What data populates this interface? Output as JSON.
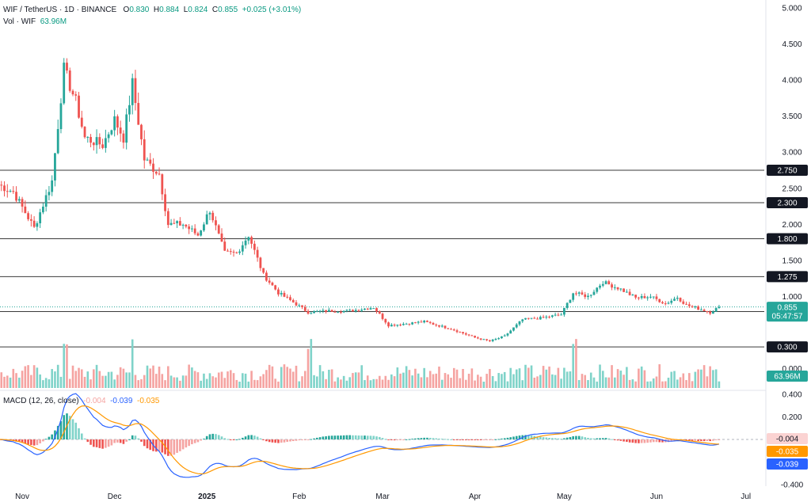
{
  "header": {
    "symbol": "WIF / TetherUS · 1D · BINANCE",
    "o_label": "O",
    "o_value": "0.830",
    "h_label": "H",
    "h_value": "0.884",
    "l_label": "L",
    "l_value": "0.824",
    "c_label": "C",
    "c_value": "0.855",
    "change": "+0.025 (+3.01%)",
    "vol_label": "Vol · WIF",
    "vol_value": "63.96M"
  },
  "macd_header": {
    "label": "MACD (12, 26, close)",
    "hist_value": "-0.004",
    "macd_value": "-0.039",
    "signal_value": "-0.035"
  },
  "colors": {
    "up": "#26a69a",
    "down": "#ef5350",
    "up_vol": "#7fd3c9",
    "down_vol": "#f5a3a1",
    "macd_line": "#2962ff",
    "signal_line": "#ff9800",
    "level_line": "#3a3a3a"
  },
  "chart_data": {
    "type": "candlestick",
    "price_axis": {
      "ticks": [
        "5.000",
        "4.500",
        "4.000",
        "3.500",
        "3.000",
        "2.500",
        "2.000",
        "1.500",
        "1.000",
        "0.000"
      ],
      "tick_values": [
        5.0,
        4.5,
        4.0,
        3.5,
        3.0,
        2.5,
        2.0,
        1.5,
        1.0,
        0.0
      ]
    },
    "time_axis": [
      "Nov",
      "Dec",
      "2025",
      "Feb",
      "Mar",
      "Apr",
      "May",
      "Jun",
      "Jul"
    ],
    "horizontal_levels": [
      {
        "value": 2.75,
        "label": "2.750"
      },
      {
        "value": 2.3,
        "label": "2.300"
      },
      {
        "value": 1.8,
        "label": "1.800"
      },
      {
        "value": 1.275,
        "label": "1.275"
      },
      {
        "value": 0.79,
        "label": "0.790"
      },
      {
        "value": 0.3,
        "label": "0.300"
      }
    ],
    "last_price": {
      "value": 0.855,
      "label": "0.855",
      "countdown": "05:47:57"
    },
    "volume_tag": "63.96M",
    "price_series_approx": [
      {
        "date": "late Oct",
        "close": 2.55
      },
      {
        "date": "Nov 5",
        "close": 1.95
      },
      {
        "date": "Nov 10",
        "close": 2.6
      },
      {
        "date": "Nov 14",
        "close": 4.15
      },
      {
        "date": "Nov 20",
        "close": 3.3
      },
      {
        "date": "Nov 28",
        "close": 3.2
      },
      {
        "date": "Dec 3",
        "close": 3.45
      },
      {
        "date": "Dec 6",
        "close": 3.95
      },
      {
        "date": "Dec 10",
        "close": 2.9
      },
      {
        "date": "Dec 20",
        "close": 2.0
      },
      {
        "date": "Jan 1",
        "close": 2.0
      },
      {
        "date": "Jan 6",
        "close": 2.2
      },
      {
        "date": "Jan 12",
        "close": 1.6
      },
      {
        "date": "Jan 18",
        "close": 1.85
      },
      {
        "date": "Jan 25",
        "close": 1.3
      },
      {
        "date": "Feb 3",
        "close": 0.95
      },
      {
        "date": "Feb 10",
        "close": 0.8
      },
      {
        "date": "Feb 28",
        "close": 0.82
      },
      {
        "date": "Mar 10",
        "close": 0.58
      },
      {
        "date": "Mar 25",
        "close": 0.63
      },
      {
        "date": "Apr 7",
        "close": 0.38
      },
      {
        "date": "Apr 25",
        "close": 0.68
      },
      {
        "date": "May 8",
        "close": 0.75
      },
      {
        "date": "May 12",
        "close": 1.05
      },
      {
        "date": "May 22",
        "close": 1.15
      },
      {
        "date": "Jun 1",
        "close": 0.98
      },
      {
        "date": "Jun 10",
        "close": 0.95
      },
      {
        "date": "Jun 20",
        "close": 0.78
      },
      {
        "date": "Jun 24",
        "close": 0.855
      }
    ],
    "macd_axis": {
      "ticks": [
        "0.400",
        "0.200",
        "0.000",
        "-0.400"
      ],
      "tick_values": [
        0.4,
        0.2,
        0.0,
        -0.4
      ]
    },
    "macd_tags": {
      "hist": "-0.004",
      "signal": "-0.035",
      "macd": "-0.039"
    }
  }
}
